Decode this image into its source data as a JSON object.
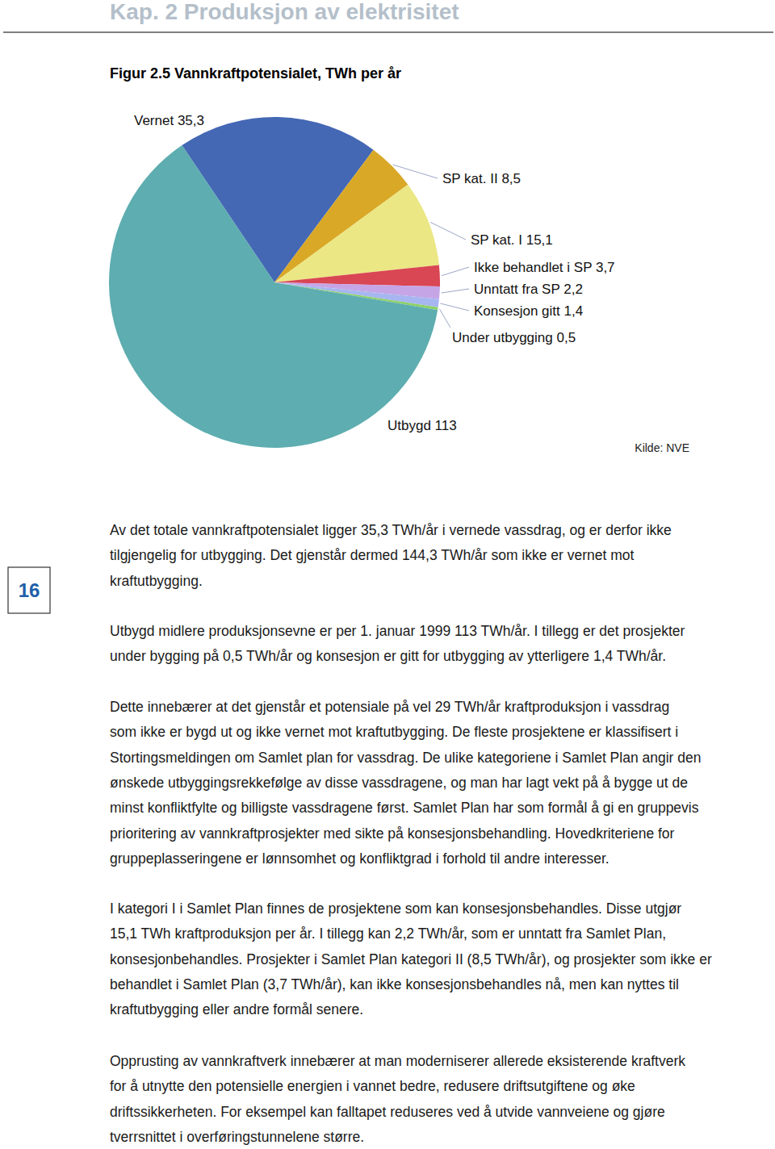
{
  "header": "Kap. 2 Produksjon av elektrisitet",
  "page_number": 16,
  "chart_data": {
    "type": "pie",
    "title": "Figur 2.5 Vannkraftpotensialet, TWh per år",
    "categories": [
      "Vernet",
      "SP kat. II",
      "SP kat. I",
      "Ikke behandlet i SP",
      "Unntatt fra SP",
      "Konsesjon gitt",
      "Under utbygging",
      "Utbygd"
    ],
    "values": [
      35.3,
      8.5,
      15.1,
      3.7,
      2.2,
      1.4,
      0.5,
      113
    ],
    "value_labels": [
      "35,3",
      "8,5",
      "15,1",
      "3,7",
      "2,2",
      "1,4",
      "0,5",
      "113"
    ],
    "colors": [
      "#4468b4",
      "#d9a827",
      "#ebe784",
      "#d94654",
      "#c6a5e6",
      "#a7b6f0",
      "#8dd16a",
      "#5eadb0"
    ],
    "data_labels": true,
    "annotations": [
      "Kilde: NVE"
    ]
  },
  "paragraphs": [
    [
      "Av det totale vannkraftpotensialet ligger 35,3 TWh/år i vernede vassdrag, og er derfor ikke",
      "tilgjengelig for utbygging. Det gjenstår dermed 144,3 TWh/år som ikke er vernet mot",
      "kraftutbygging."
    ],
    [
      "Utbygd midlere produksjonsevne er per 1. januar 1999 113 TWh/år. I tillegg er det prosjekter",
      "under bygging på 0,5 TWh/år og konsesjon er gitt for utbygging av ytterligere 1,4 TWh/år."
    ],
    [
      "Dette innebærer at det gjenstår et potensiale på vel 29 TWh/år kraftproduksjon i vassdrag",
      "som ikke er bygd ut og ikke vernet mot kraftutbygging. De fleste prosjektene er klassifisert i",
      "Stortingsmeldingen om Samlet plan for vassdrag. De ulike kategoriene i Samlet Plan angir den",
      "ønskede utbyggingsrekkefølge av disse vassdragene, og man har lagt vekt på å bygge ut de",
      "minst konfliktfylte og billigste vassdragene først. Samlet Plan har som formål å gi en gruppevis",
      "prioritering av vannkraftprosjekter med sikte på konsesjonsbehandling. Hovedkriteriene for",
      "gruppeplasseringene er lønnsomhet og konfliktgrad i forhold til andre interesser."
    ],
    [
      "I kategori I i Samlet Plan finnes de prosjektene som kan konsesjonsbehandles. Disse utgjør",
      "15,1 TWh kraftproduksjon per år. I tillegg kan 2,2 TWh/år, som er unntatt fra Samlet Plan,",
      "konsesjonbehandles. Prosjekter i Samlet Plan kategori II (8,5 TWh/år), og prosjekter som ikke er",
      "behandlet i Samlet Plan (3,7 TWh/år), kan ikke konsesjonsbehandles nå, men kan nyttes til",
      "kraftutbygging eller andre formål senere."
    ],
    [
      "Opprusting av vannkraftverk innebærer at man moderniserer allerede eksisterende kraftverk",
      "for å utnytte den potensielle energien i vannet bedre, redusere driftsutgiftene og øke",
      "driftssikkerheten. For eksempel kan falltapet reduseres ved å utvide vannveiene og gjøre",
      "tverrsnittet i overføringstunnelene større."
    ]
  ]
}
